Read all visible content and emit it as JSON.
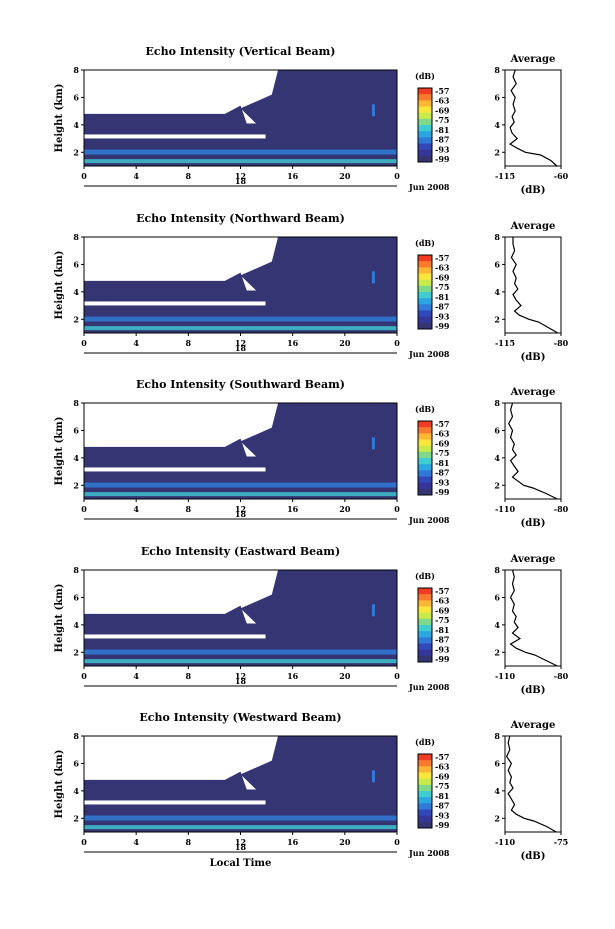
{
  "chart_data": [
    {
      "type": "heatmap",
      "title": "Echo Intensity (Vertical Beam)",
      "ylabel": "Height (km)",
      "x_ticks": [
        "0",
        "4",
        "8",
        "12",
        "16",
        "20",
        "0"
      ],
      "date_day": "18",
      "date_label": "Jun 2008",
      "ylim": [
        1,
        8
      ],
      "y_ticks": [
        "8",
        "6",
        "4",
        "2"
      ],
      "colorbar": {
        "unit": "(dB)",
        "ticks": [
          "-57",
          "-63",
          "-69",
          "-75",
          "-81",
          "-87",
          "-93",
          "-99"
        ]
      },
      "profile": {
        "title": "Average",
        "xlabel": "(dB)",
        "xlim": [
          -115,
          -60
        ],
        "x_ticks": [
          "-115",
          "-60"
        ],
        "y_ticks": [
          "8",
          "6",
          "4",
          "2"
        ],
        "height_km": [
          1.0,
          1.4,
          1.8,
          2.0,
          2.3,
          2.6,
          3.0,
          3.4,
          3.8,
          4.2,
          4.6,
          5.0,
          5.5,
          6.0,
          6.5,
          7.0,
          7.5,
          8.0
        ],
        "db": [
          -64,
          -70,
          -80,
          -95,
          -103,
          -110,
          -103,
          -108,
          -110,
          -106,
          -108,
          -105,
          -107,
          -105,
          -109,
          -104,
          -107,
          -105
        ]
      }
    },
    {
      "type": "heatmap",
      "title": "Echo Intensity (Northward Beam)",
      "ylabel": "Height (km)",
      "x_ticks": [
        "0",
        "4",
        "8",
        "12",
        "16",
        "20",
        "0"
      ],
      "date_day": "18",
      "date_label": "Jun 2008",
      "ylim": [
        1,
        8
      ],
      "y_ticks": [
        "8",
        "6",
        "4",
        "2"
      ],
      "colorbar": {
        "unit": "(dB)",
        "ticks": [
          "-57",
          "-63",
          "-69",
          "-75",
          "-81",
          "-87",
          "-93",
          "-99"
        ]
      },
      "profile": {
        "title": "Average",
        "xlabel": "(dB)",
        "xlim": [
          -115,
          -80
        ],
        "x_ticks": [
          "-115",
          "-80"
        ],
        "y_ticks": [
          "8",
          "6",
          "4",
          "2"
        ],
        "height_km": [
          1.0,
          1.4,
          1.8,
          2.0,
          2.3,
          2.6,
          3.0,
          3.4,
          3.8,
          4.2,
          4.6,
          5.0,
          5.5,
          6.0,
          6.5,
          7.0,
          7.5,
          8.0
        ],
        "db": [
          -82,
          -88,
          -94,
          -100,
          -106,
          -109,
          -105,
          -108,
          -110,
          -107,
          -109,
          -108,
          -110,
          -108,
          -111,
          -109,
          -110,
          -110
        ]
      }
    },
    {
      "type": "heatmap",
      "title": "Echo Intensity (Southward Beam)",
      "ylabel": "Height (km)",
      "x_ticks": [
        "0",
        "4",
        "8",
        "12",
        "16",
        "20",
        "0"
      ],
      "date_day": "18",
      "date_label": "Jun 2008",
      "ylim": [
        1,
        8
      ],
      "y_ticks": [
        "8",
        "6",
        "4",
        "2"
      ],
      "colorbar": {
        "unit": "(dB)",
        "ticks": [
          "-57",
          "-63",
          "-69",
          "-75",
          "-81",
          "-87",
          "-93",
          "-99"
        ]
      },
      "profile": {
        "title": "Average",
        "xlabel": "(dB)",
        "xlim": [
          -110,
          -80
        ],
        "x_ticks": [
          "-110",
          "-80"
        ],
        "y_ticks": [
          "8",
          "6",
          "4",
          "2"
        ],
        "height_km": [
          1.0,
          1.4,
          1.8,
          2.0,
          2.3,
          2.6,
          3.0,
          3.4,
          3.8,
          4.2,
          4.6,
          5.0,
          5.5,
          6.0,
          6.5,
          7.0,
          7.5,
          8.0
        ],
        "db": [
          -82,
          -88,
          -95,
          -100,
          -103,
          -106,
          -103,
          -105,
          -107,
          -104,
          -106,
          -105,
          -107,
          -106,
          -108,
          -106,
          -107,
          -106
        ]
      }
    },
    {
      "type": "heatmap",
      "title": "Echo Intensity (Eastward Beam)",
      "ylabel": "Height (km)",
      "x_ticks": [
        "0",
        "4",
        "8",
        "12",
        "16",
        "20",
        "0"
      ],
      "date_day": "18",
      "date_label": "Jun 2008",
      "ylim": [
        1,
        8
      ],
      "y_ticks": [
        "8",
        "6",
        "4",
        "2"
      ],
      "colorbar": {
        "unit": "(dB)",
        "ticks": [
          "-57",
          "-63",
          "-69",
          "-75",
          "-81",
          "-87",
          "-93",
          "-99"
        ]
      },
      "profile": {
        "title": "Average",
        "xlabel": "(dB)",
        "xlim": [
          -110,
          -80
        ],
        "x_ticks": [
          "-110",
          "-80"
        ],
        "y_ticks": [
          "8",
          "6",
          "4",
          "2"
        ],
        "height_km": [
          1.0,
          1.4,
          1.8,
          2.0,
          2.3,
          2.6,
          3.0,
          3.4,
          3.8,
          4.2,
          4.6,
          5.0,
          5.5,
          6.0,
          6.5,
          7.0,
          7.5,
          8.0
        ],
        "db": [
          -82,
          -88,
          -94,
          -99,
          -104,
          -107,
          -102,
          -106,
          -103,
          -105,
          -104,
          -106,
          -105,
          -107,
          -105,
          -106,
          -105,
          -106
        ]
      }
    },
    {
      "type": "heatmap",
      "title": "Echo Intensity (Westward Beam)",
      "ylabel": "Height (km)",
      "x_ticks": [
        "0",
        "4",
        "8",
        "12",
        "16",
        "20",
        "0"
      ],
      "date_day": "18",
      "date_label": "Jun 2008",
      "xlabel": "Local Time",
      "ylim": [
        1,
        8
      ],
      "y_ticks": [
        "8",
        "6",
        "4",
        "2"
      ],
      "colorbar": {
        "unit": "(dB)",
        "ticks": [
          "-57",
          "-63",
          "-69",
          "-75",
          "-81",
          "-87",
          "-93",
          "-99"
        ]
      },
      "profile": {
        "title": "Average",
        "xlabel": "(dB)",
        "xlim": [
          -110,
          -75
        ],
        "x_ticks": [
          "-110",
          "-75"
        ],
        "y_ticks": [
          "8",
          "6",
          "4",
          "2"
        ],
        "height_km": [
          1.0,
          1.4,
          1.8,
          2.0,
          2.3,
          2.6,
          3.0,
          3.4,
          3.8,
          4.2,
          4.6,
          5.0,
          5.5,
          6.0,
          6.5,
          7.0,
          7.5,
          8.0
        ],
        "db": [
          -78,
          -84,
          -92,
          -98,
          -103,
          -106,
          -104,
          -106,
          -108,
          -105,
          -107,
          -106,
          -108,
          -106,
          -109,
          -107,
          -108,
          -107
        ]
      }
    }
  ],
  "colors": {
    "colorbar_palette": [
      "#f03c22",
      "#f87a2c",
      "#fbb634",
      "#f9e63c",
      "#c8ea4a",
      "#7fd98a",
      "#3fcdd2",
      "#2aa7e0",
      "#2f7ad8",
      "#3348b8",
      "#35369a",
      "#353573"
    ],
    "background_echo": "#353573",
    "layer_cyan": "#3fcdd2",
    "layer_blue": "#2f7ad8"
  }
}
